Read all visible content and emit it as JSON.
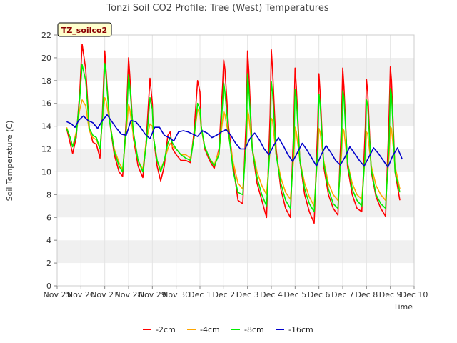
{
  "chart_data": {
    "type": "line",
    "title": "Tonzi Soil CO2 Profile: Tree (West) Temperatures",
    "xlabel": "Time",
    "ylabel": "Soil Temperature (C)",
    "logger_label": "TZ_soilco2",
    "ylim": [
      0,
      22
    ],
    "xlim": [
      0,
      15
    ],
    "yticks": [
      0,
      2,
      4,
      6,
      8,
      10,
      12,
      14,
      16,
      18,
      20,
      22
    ],
    "xticks": [
      {
        "pos": 0,
        "label": "Nov 25"
      },
      {
        "pos": 1,
        "label": "Nov 26"
      },
      {
        "pos": 2,
        "label": "Nov 27"
      },
      {
        "pos": 3,
        "label": "Nov 28"
      },
      {
        "pos": 4,
        "label": "Nov 29"
      },
      {
        "pos": 5,
        "label": "Nov 30"
      },
      {
        "pos": 6,
        "label": "Dec 1"
      },
      {
        "pos": 7,
        "label": "Dec 2"
      },
      {
        "pos": 8,
        "label": "Dec 3"
      },
      {
        "pos": 9,
        "label": "Dec 4"
      },
      {
        "pos": 10,
        "label": "Dec 5"
      },
      {
        "pos": 11,
        "label": "Dec 6"
      },
      {
        "pos": 12,
        "label": "Dec 7"
      },
      {
        "pos": 13,
        "label": "Dec 8"
      },
      {
        "pos": 14,
        "label": "Dec 9"
      },
      {
        "pos": 15,
        "label": "Dec 10"
      }
    ],
    "grid": "horizontal bands",
    "legend_position": "bottom",
    "series": [
      {
        "name": "-2cm",
        "color": "#ff0000",
        "x": [
          0.4,
          0.55,
          0.65,
          0.8,
          0.95,
          1.05,
          1.2,
          1.35,
          1.5,
          1.65,
          1.8,
          1.9,
          2.0,
          2.05,
          2.2,
          2.4,
          2.6,
          2.75,
          2.9,
          3.0,
          3.05,
          3.2,
          3.4,
          3.6,
          3.75,
          3.9,
          4.0,
          4.05,
          4.2,
          4.35,
          4.5,
          4.65,
          4.75,
          4.85,
          5.0,
          5.2,
          5.4,
          5.6,
          5.75,
          5.9,
          6.0,
          6.05,
          6.2,
          6.4,
          6.6,
          6.8,
          6.95,
          7.0,
          7.05,
          7.2,
          7.4,
          7.6,
          7.8,
          7.95,
          8.0,
          8.05,
          8.2,
          8.4,
          8.6,
          8.8,
          8.95,
          9.0,
          9.05,
          9.2,
          9.4,
          9.6,
          9.8,
          9.95,
          10.0,
          10.05,
          10.2,
          10.4,
          10.6,
          10.8,
          10.95,
          11.0,
          11.05,
          11.2,
          11.4,
          11.6,
          11.8,
          11.95,
          12.0,
          12.05,
          12.2,
          12.4,
          12.6,
          12.8,
          12.95,
          13.0,
          13.05,
          13.2,
          13.4,
          13.6,
          13.8,
          13.95,
          14.0,
          14.05,
          14.2,
          14.4
        ],
        "y": [
          13.8,
          12.5,
          11.6,
          13.0,
          17.0,
          21.2,
          19.0,
          13.8,
          12.6,
          12.4,
          11.2,
          15.0,
          20.6,
          19.0,
          14.5,
          11.5,
          10.0,
          9.6,
          14.5,
          20.0,
          18.5,
          13.0,
          10.5,
          9.5,
          13.0,
          18.2,
          16.0,
          13.0,
          10.5,
          9.2,
          10.5,
          13.2,
          13.5,
          12.0,
          11.5,
          11.0,
          11.0,
          10.8,
          13.5,
          18.0,
          17.0,
          14.0,
          12.0,
          11.0,
          10.3,
          12.0,
          17.5,
          19.8,
          19.0,
          14.0,
          10.5,
          7.5,
          7.2,
          15.0,
          20.6,
          19.0,
          12.0,
          9.0,
          7.5,
          6.0,
          15.0,
          20.7,
          19.0,
          12.0,
          8.5,
          6.8,
          6.0,
          14.5,
          19.1,
          17.5,
          11.0,
          8.0,
          6.5,
          5.5,
          14.0,
          18.6,
          17.0,
          10.5,
          8.0,
          6.8,
          6.2,
          14.5,
          19.1,
          17.5,
          10.5,
          8.0,
          6.8,
          6.5,
          14.0,
          18.1,
          17.0,
          10.0,
          7.8,
          6.8,
          6.1,
          15.0,
          19.2,
          18.0,
          10.0,
          7.5
        ]
      },
      {
        "name": "-4cm",
        "color": "#ffa500",
        "x": [
          0.4,
          0.55,
          0.65,
          0.8,
          0.95,
          1.05,
          1.2,
          1.35,
          1.5,
          1.65,
          1.8,
          1.9,
          2.0,
          2.05,
          2.2,
          2.4,
          2.6,
          2.75,
          2.9,
          3.0,
          3.05,
          3.2,
          3.4,
          3.6,
          3.75,
          3.9,
          4.0,
          4.05,
          4.2,
          4.35,
          4.5,
          4.65,
          4.75,
          4.85,
          5.0,
          5.2,
          5.4,
          5.6,
          5.75,
          5.9,
          6.0,
          6.05,
          6.2,
          6.4,
          6.6,
          6.8,
          6.95,
          7.0,
          7.05,
          7.2,
          7.4,
          7.6,
          7.8,
          7.95,
          8.0,
          8.05,
          8.2,
          8.4,
          8.6,
          8.8,
          8.95,
          9.0,
          9.05,
          9.2,
          9.4,
          9.6,
          9.8,
          9.95,
          10.0,
          10.05,
          10.2,
          10.4,
          10.6,
          10.8,
          10.95,
          11.0,
          11.05,
          11.2,
          11.4,
          11.6,
          11.8,
          11.95,
          12.0,
          12.05,
          12.2,
          12.4,
          12.6,
          12.8,
          12.95,
          13.0,
          13.05,
          13.2,
          13.4,
          13.6,
          13.8,
          13.95,
          14.0,
          14.05,
          14.2,
          14.4
        ],
        "y": [
          13.9,
          13.0,
          12.2,
          13.5,
          15.5,
          16.3,
          15.8,
          13.6,
          13.0,
          12.8,
          12.0,
          14.5,
          16.5,
          16.3,
          14.5,
          12.0,
          10.8,
          10.2,
          13.5,
          15.9,
          15.5,
          13.2,
          11.0,
          10.2,
          12.8,
          14.2,
          14.0,
          13.0,
          11.0,
          10.2,
          11.0,
          12.0,
          12.5,
          12.2,
          12.0,
          11.5,
          11.5,
          11.2,
          13.0,
          15.5,
          15.0,
          13.8,
          12.2,
          11.2,
          10.6,
          11.8,
          14.5,
          15.3,
          15.0,
          13.2,
          10.8,
          9.0,
          8.5,
          12.5,
          15.4,
          15.0,
          12.0,
          10.0,
          8.8,
          8.0,
          12.0,
          14.7,
          14.5,
          11.5,
          9.5,
          8.2,
          7.6,
          11.5,
          13.9,
          13.5,
          11.0,
          9.0,
          7.8,
          7.0,
          11.5,
          13.8,
          13.5,
          11.0,
          9.0,
          8.0,
          7.5,
          11.5,
          13.8,
          13.6,
          10.8,
          9.0,
          8.0,
          7.6,
          11.5,
          13.5,
          13.3,
          10.5,
          8.8,
          8.0,
          7.5,
          11.5,
          14.0,
          13.8,
          10.5,
          8.5
        ]
      },
      {
        "name": "-8cm",
        "color": "#00ee00",
        "x": [
          0.4,
          0.55,
          0.65,
          0.8,
          0.95,
          1.05,
          1.2,
          1.35,
          1.5,
          1.65,
          1.8,
          1.9,
          2.0,
          2.05,
          2.2,
          2.4,
          2.6,
          2.75,
          2.9,
          3.0,
          3.05,
          3.2,
          3.4,
          3.6,
          3.75,
          3.9,
          4.0,
          4.05,
          4.2,
          4.35,
          4.5,
          4.65,
          4.75,
          4.85,
          5.0,
          5.2,
          5.4,
          5.6,
          5.75,
          5.9,
          6.0,
          6.05,
          6.2,
          6.4,
          6.6,
          6.8,
          6.95,
          7.0,
          7.05,
          7.2,
          7.4,
          7.6,
          7.8,
          7.95,
          8.0,
          8.05,
          8.2,
          8.4,
          8.6,
          8.8,
          8.95,
          9.0,
          9.05,
          9.2,
          9.4,
          9.6,
          9.8,
          9.95,
          10.0,
          10.05,
          10.2,
          10.4,
          10.6,
          10.8,
          10.95,
          11.0,
          11.05,
          11.2,
          11.4,
          11.6,
          11.8,
          11.95,
          12.0,
          12.05,
          12.2,
          12.4,
          12.6,
          12.8,
          12.95,
          13.0,
          13.05,
          13.2,
          13.4,
          13.6,
          13.8,
          13.95,
          14.0,
          14.05,
          14.2,
          14.4
        ],
        "y": [
          13.8,
          13.0,
          12.2,
          13.2,
          16.5,
          19.4,
          18.0,
          13.8,
          13.2,
          13.0,
          12.0,
          14.5,
          19.5,
          18.5,
          14.5,
          11.8,
          10.5,
          10.0,
          14.0,
          18.5,
          17.5,
          13.5,
          11.0,
          10.0,
          12.5,
          16.5,
          15.5,
          13.0,
          11.0,
          10.0,
          11.0,
          12.5,
          13.0,
          12.5,
          12.0,
          11.5,
          11.2,
          11.0,
          13.0,
          16.0,
          15.5,
          14.0,
          12.2,
          11.2,
          10.5,
          11.5,
          16.0,
          17.8,
          17.0,
          13.5,
          10.0,
          8.2,
          8.0,
          13.0,
          18.6,
          17.5,
          12.0,
          9.5,
          8.0,
          7.0,
          12.5,
          17.9,
          17.0,
          11.5,
          9.0,
          7.5,
          6.8,
          12.5,
          17.2,
          16.5,
          11.0,
          8.5,
          7.2,
          6.5,
          12.0,
          16.8,
          16.0,
          10.8,
          8.5,
          7.2,
          6.8,
          12.5,
          17.1,
          16.5,
          10.8,
          8.5,
          7.5,
          7.0,
          12.0,
          16.3,
          15.8,
          10.2,
          8.0,
          7.2,
          6.8,
          12.5,
          17.3,
          16.8,
          10.0,
          8.2
        ]
      },
      {
        "name": "-16cm",
        "color": "#0000cc",
        "x": [
          0.4,
          0.6,
          0.75,
          0.9,
          1.1,
          1.3,
          1.5,
          1.7,
          1.9,
          2.1,
          2.3,
          2.5,
          2.7,
          2.9,
          3.1,
          3.3,
          3.5,
          3.7,
          3.9,
          4.1,
          4.3,
          4.5,
          4.7,
          4.9,
          5.1,
          5.3,
          5.5,
          5.7,
          5.9,
          6.1,
          6.3,
          6.5,
          6.7,
          6.9,
          7.1,
          7.3,
          7.5,
          7.7,
          7.9,
          8.1,
          8.3,
          8.5,
          8.7,
          8.9,
          9.1,
          9.3,
          9.5,
          9.7,
          9.9,
          10.1,
          10.3,
          10.5,
          10.7,
          10.9,
          11.1,
          11.3,
          11.5,
          11.7,
          11.9,
          12.1,
          12.3,
          12.5,
          12.7,
          12.9,
          13.1,
          13.3,
          13.5,
          13.7,
          13.9,
          14.1,
          14.3,
          14.5
        ],
        "y": [
          14.4,
          14.2,
          13.9,
          14.5,
          14.9,
          14.5,
          14.3,
          13.8,
          14.5,
          15.0,
          14.4,
          13.8,
          13.3,
          13.2,
          14.5,
          14.4,
          13.9,
          13.3,
          12.9,
          13.9,
          13.9,
          13.2,
          13.0,
          12.7,
          13.5,
          13.6,
          13.5,
          13.3,
          13.1,
          13.6,
          13.4,
          13.0,
          13.2,
          13.5,
          13.7,
          13.2,
          12.5,
          12.0,
          12.0,
          12.9,
          13.4,
          12.8,
          12.0,
          11.5,
          12.3,
          13.0,
          12.3,
          11.5,
          10.9,
          11.7,
          12.5,
          11.9,
          11.2,
          10.5,
          11.5,
          12.3,
          11.7,
          11.0,
          10.6,
          11.3,
          12.2,
          11.6,
          11.0,
          10.5,
          11.3,
          12.1,
          11.6,
          11.0,
          10.4,
          11.4,
          12.1,
          11.1
        ]
      }
    ]
  }
}
